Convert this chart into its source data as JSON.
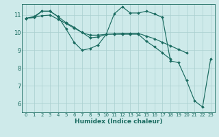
{
  "xlabel": "Humidex (Indice chaleur)",
  "ylabel": "",
  "bg_color": "#ceeaea",
  "line_color": "#1a6b60",
  "grid_color": "#aacfcf",
  "xlim": [
    -0.5,
    23.5
  ],
  "ylim": [
    5.5,
    11.6
  ],
  "xticks": [
    0,
    1,
    2,
    3,
    4,
    5,
    6,
    7,
    8,
    9,
    10,
    11,
    12,
    13,
    14,
    15,
    16,
    17,
    18,
    19,
    20,
    21,
    22,
    23
  ],
  "yticks": [
    6,
    7,
    8,
    9,
    10,
    11
  ],
  "series": [
    [
      10.8,
      10.9,
      11.2,
      11.2,
      10.9,
      10.2,
      9.45,
      9.0,
      9.1,
      9.3,
      9.9,
      11.05,
      11.45,
      11.1,
      11.1,
      11.2,
      11.05,
      10.85,
      8.4,
      8.3,
      7.3,
      6.15,
      5.8,
      8.5
    ],
    [
      10.8,
      10.85,
      11.2,
      11.2,
      10.9,
      10.55,
      10.3,
      10.0,
      9.7,
      9.75,
      9.9,
      9.9,
      9.9,
      9.9,
      9.9,
      9.5,
      9.2,
      8.85,
      8.5,
      null,
      null,
      null,
      null,
      null
    ],
    [
      10.8,
      10.85,
      10.95,
      10.98,
      10.75,
      10.5,
      10.25,
      10.0,
      9.85,
      9.85,
      9.9,
      9.93,
      9.95,
      9.95,
      9.95,
      9.8,
      9.65,
      9.45,
      9.25,
      9.05,
      8.85,
      null,
      null,
      null
    ]
  ],
  "marker": "D",
  "markersize": 2.0,
  "linewidth": 0.85,
  "tick_fontsize_x": 5.0,
  "tick_fontsize_y": 6.0,
  "xlabel_fontsize": 6.5,
  "xlabel_fontweight": "bold"
}
